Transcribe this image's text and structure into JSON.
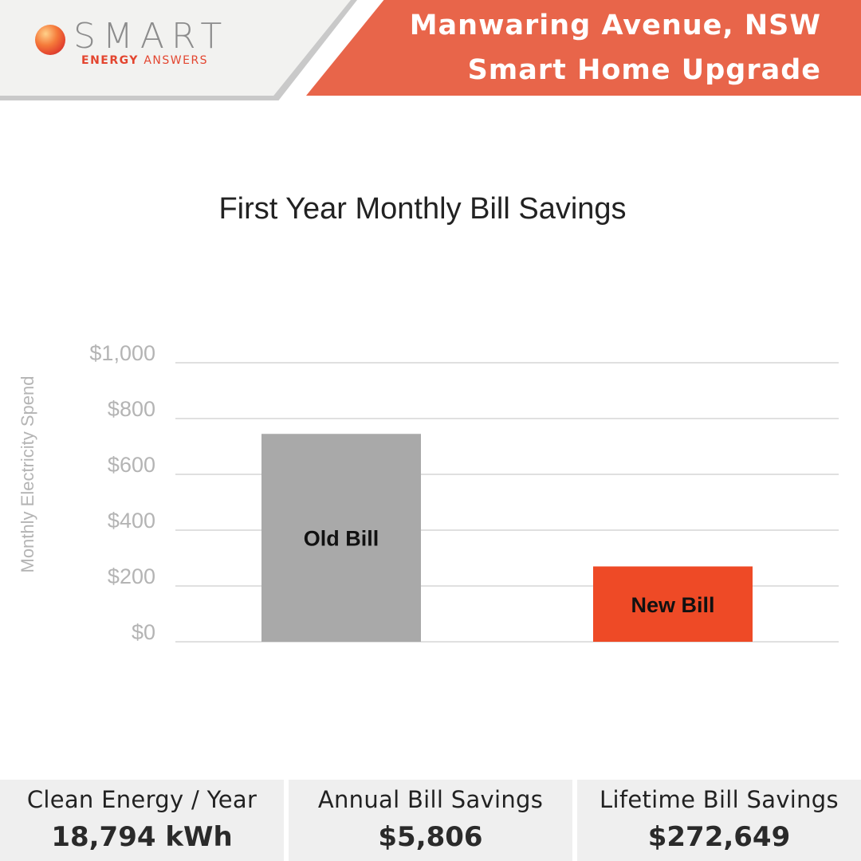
{
  "brand": {
    "name": "SMART",
    "tagline_bold": "ENERGY",
    "tagline_rest": "ANSWERS"
  },
  "header": {
    "line1": "Manwaring Avenue, NSW",
    "line2": "Smart Home Upgrade"
  },
  "colors": {
    "accent": "#e8654a",
    "old_bill": "#a9a9a9",
    "new_bill": "#ee4a26",
    "panel": "#efefef"
  },
  "chart_data": {
    "type": "bar",
    "title": "First Year Monthly Bill Savings",
    "ylabel": "Monthly Electricity Spend",
    "xlabel": "",
    "ylim": [
      0,
      1000
    ],
    "yticks": [
      0,
      200,
      400,
      600,
      800,
      1000
    ],
    "ytick_labels": [
      "$0",
      "$200",
      "$400",
      "$600",
      "$800",
      "$1,000"
    ],
    "categories": [
      "Old Bill",
      "New Bill"
    ],
    "values": [
      745,
      270
    ],
    "bar_colors": [
      "#a9a9a9",
      "#ee4a26"
    ],
    "grid": true,
    "legend": "none"
  },
  "stats": [
    {
      "label": "Clean Energy / Year",
      "value": "18,794 kWh"
    },
    {
      "label": "Annual Bill Savings",
      "value": "$5,806"
    },
    {
      "label": "Lifetime Bill Savings",
      "value": "$272,649"
    }
  ]
}
